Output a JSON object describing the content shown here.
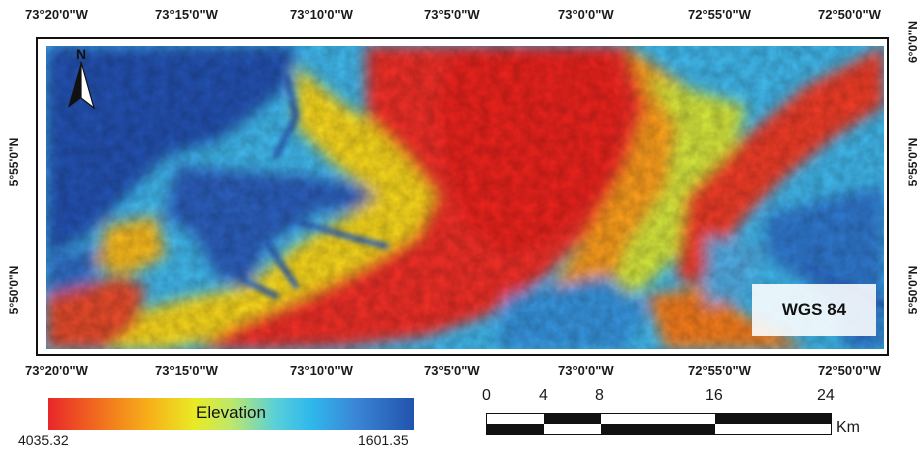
{
  "top_ticks": [
    "73°20'0\"W",
    "73°15'0\"W",
    "73°10'0\"W",
    "73°5'0\"W",
    "73°0'0\"W",
    "72°55'0\"W",
    "72°50'0\"W"
  ],
  "bottom_ticks": [
    "73°20'0\"W",
    "73°15'0\"W",
    "73°10'0\"W",
    "73°5'0\"W",
    "73°0'0\"W",
    "72°55'0\"W",
    "72°50'0\"W"
  ],
  "left_ticks": [
    "5°55'0\"N",
    "5°50'0\"N"
  ],
  "right_ticks": [
    "6°0'0\"N",
    "5°55'0\"N",
    "5°50'0\"N"
  ],
  "north_label": "N",
  "datum_label": "WGS 84",
  "legend": {
    "title": "Elevation",
    "min_label": "4035.32",
    "max_label": "1601.35",
    "colors": [
      "#e8262a",
      "#f7b21a",
      "#e9ea24",
      "#5ad0d8",
      "#2eb8ec",
      "#2153ad"
    ]
  },
  "scale": {
    "labels": [
      "0",
      "4",
      "8",
      "16",
      "24"
    ],
    "unit": "Km"
  }
}
